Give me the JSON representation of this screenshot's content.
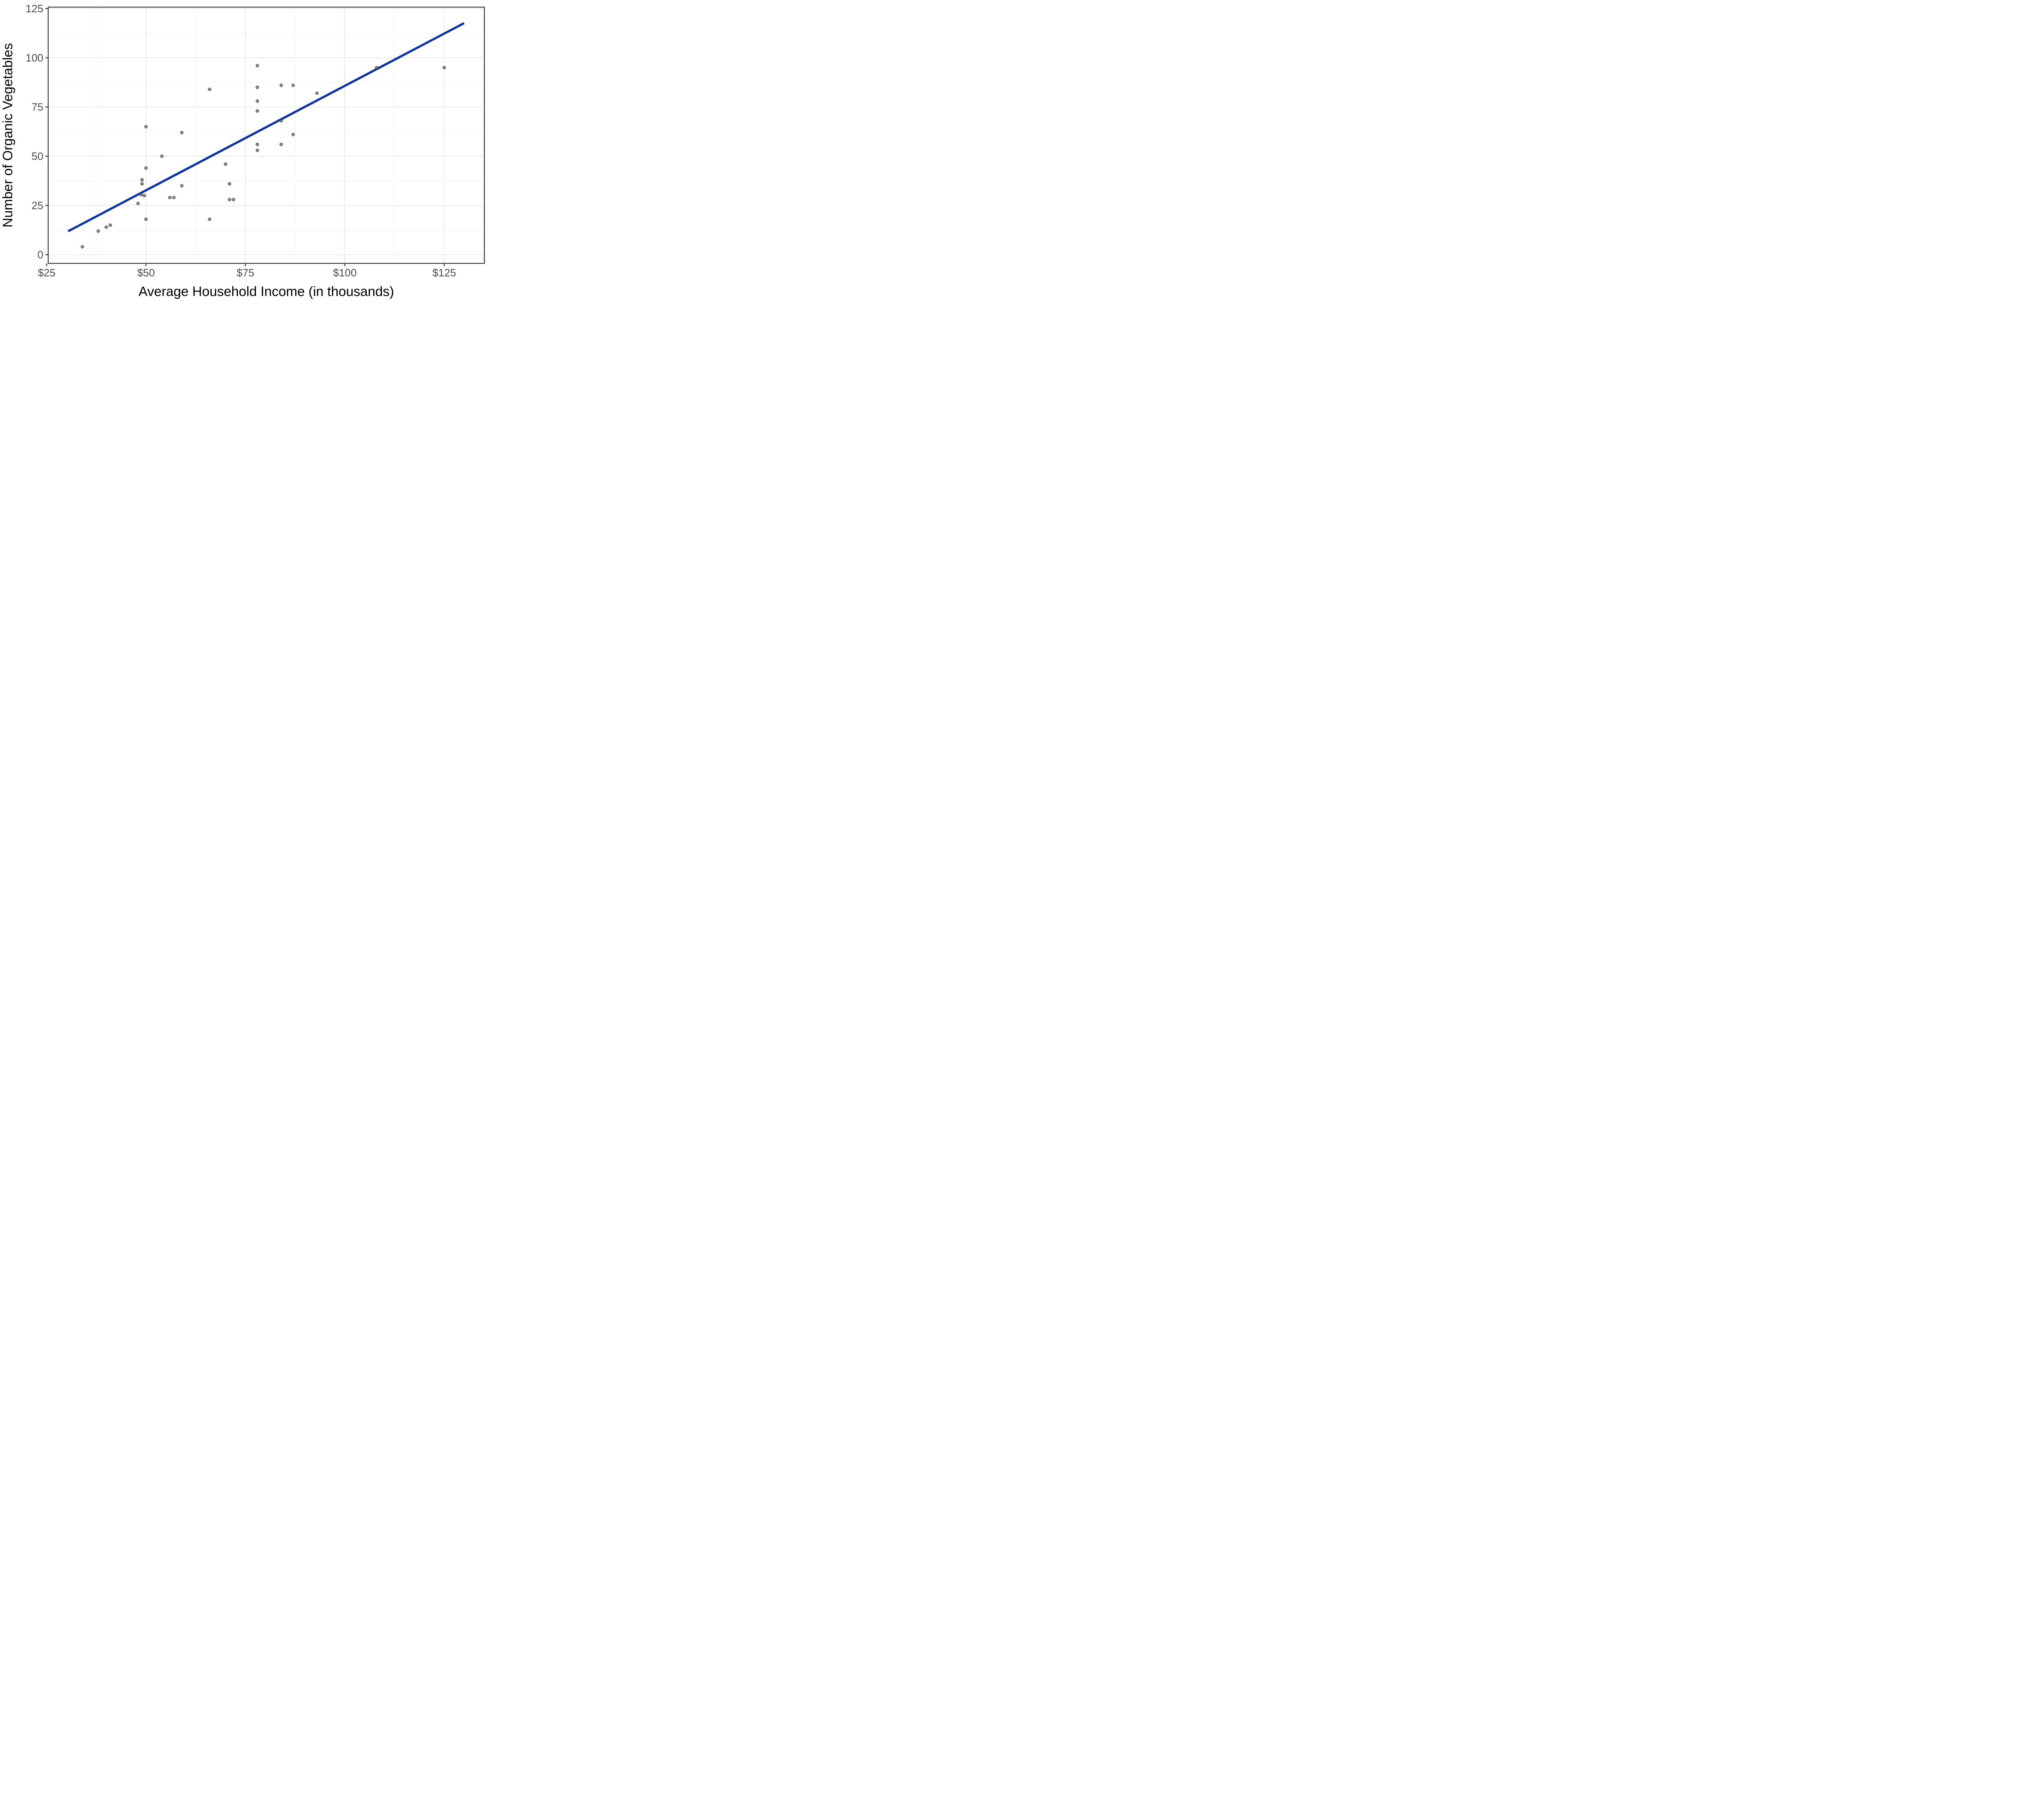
{
  "chart_data": {
    "type": "scatter",
    "title": "",
    "xlabel": "Average Household Income (in thousands)",
    "ylabel": "Number of Organic Vegetables",
    "x_ticks": [
      {
        "value": 25,
        "label": "$25"
      },
      {
        "value": 50,
        "label": "$50"
      },
      {
        "value": 75,
        "label": "$75"
      },
      {
        "value": 100,
        "label": "$100"
      },
      {
        "value": 125,
        "label": "$125"
      }
    ],
    "y_ticks": [
      {
        "value": 125,
        "label": "125"
      },
      {
        "value": 100,
        "label": "100"
      },
      {
        "value": 75,
        "label": "75"
      },
      {
        "value": 50,
        "label": "50"
      },
      {
        "value": 25,
        "label": "25"
      },
      {
        "value": 0,
        "label": "0"
      }
    ],
    "x_minor_gridlines": [
      37.5,
      62.5,
      87.5,
      112.5
    ],
    "y_minor_gridlines": [
      12.5,
      37.5,
      62.5,
      87.5,
      112.5
    ],
    "x_range": [
      25.4,
      135.1
    ],
    "y_range": [
      -4.4,
      125.7
    ],
    "grid": true,
    "legend_position": "none",
    "points": [
      [
        34,
        4
      ],
      [
        38,
        12
      ],
      [
        40,
        14
      ],
      [
        41,
        15
      ],
      [
        48,
        26
      ],
      [
        48.8,
        30.5
      ],
      [
        49.6,
        30
      ],
      [
        49,
        36
      ],
      [
        49,
        38
      ],
      [
        50,
        44
      ],
      [
        50,
        65
      ],
      [
        50,
        18
      ],
      [
        54,
        50
      ],
      [
        56,
        29
      ],
      [
        57,
        29
      ],
      [
        59,
        35
      ],
      [
        59,
        62
      ],
      [
        66,
        84
      ],
      [
        66,
        18
      ],
      [
        70,
        46
      ],
      [
        71,
        36
      ],
      [
        71,
        28
      ],
      [
        72,
        28
      ],
      [
        78,
        96
      ],
      [
        78,
        85
      ],
      [
        78,
        78
      ],
      [
        78,
        73
      ],
      [
        78,
        56
      ],
      [
        78,
        53
      ],
      [
        84,
        86
      ],
      [
        84,
        68
      ],
      [
        84,
        56
      ],
      [
        87,
        86
      ],
      [
        87,
        61
      ],
      [
        93,
        82
      ],
      [
        108,
        95
      ],
      [
        125,
        95
      ]
    ],
    "trend_line": {
      "type": "linear",
      "slope": 1.061,
      "intercept": -20.35,
      "x_start": 30.4,
      "x_end": 130.0
    },
    "colors": {
      "trend_line": "#0e34a0",
      "point_fill": "#6e6e6e",
      "point_stroke": "#1f1f1f",
      "grid_major": "#e5e5e5",
      "grid_minor": "#f1f1f1",
      "panel_border": "#333333",
      "tick_mark": "#333333",
      "tick_label": "#4d4d4d",
      "axis_title": "#000000",
      "background": "#ffffff"
    }
  }
}
